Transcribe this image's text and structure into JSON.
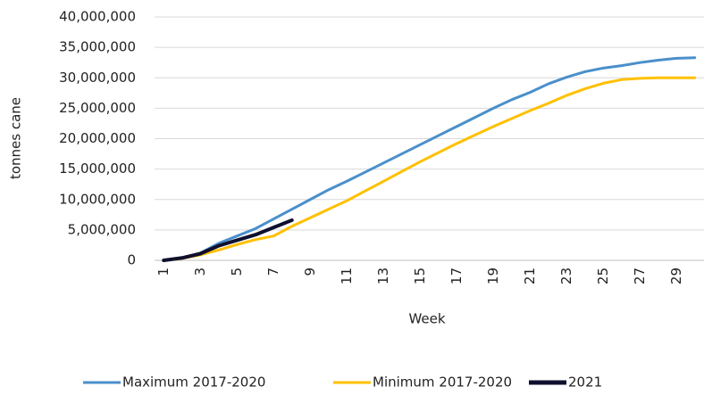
{
  "chart_data": {
    "type": "line",
    "x_label": "Week",
    "y_label": "tonnes cane",
    "categories": [
      "1",
      null,
      "3",
      null,
      "5",
      null,
      "7",
      null,
      "9",
      null,
      "11",
      null,
      "13",
      null,
      "15",
      null,
      "17",
      null,
      "19",
      null,
      "21",
      null,
      "23",
      null,
      "25",
      null,
      "27",
      null,
      "29",
      null
    ],
    "series": [
      {
        "name": "Maximum 2017-2020",
        "color": "#4a8fcb",
        "values": [
          0,
          400000,
          1200000,
          2800000,
          4000000,
          5200000,
          6800000,
          8400000,
          10000000,
          11600000,
          13000000,
          14500000,
          16000000,
          17500000,
          19000000,
          20500000,
          22000000,
          23500000,
          25000000,
          26400000,
          27600000,
          29000000,
          30100000,
          31000000,
          31600000,
          32000000,
          32500000,
          32900000,
          33200000,
          33300000
        ]
      },
      {
        "name": "Minimum 2017-2020",
        "color": "#ffc000",
        "values": [
          0,
          300000,
          900000,
          1700000,
          2600000,
          3400000,
          4000000,
          5600000,
          7000000,
          8400000,
          9800000,
          11400000,
          13000000,
          14600000,
          16200000,
          17700000,
          19200000,
          20600000,
          22000000,
          23300000,
          24600000,
          25800000,
          27100000,
          28200000,
          29100000,
          29700000,
          29900000,
          30000000,
          30000000,
          30000000
        ]
      },
      {
        "name": "2021",
        "color": "#10102e",
        "values": [
          0,
          400000,
          1100000,
          2400000,
          3300000,
          4200000,
          5400000,
          6600000,
          null,
          null,
          null,
          null,
          null,
          null,
          null,
          null,
          null,
          null,
          null,
          null,
          null,
          null,
          null,
          null,
          null,
          null,
          null,
          null,
          null,
          null
        ]
      }
    ],
    "ylim": [
      0,
      40000000
    ],
    "yticks": [
      0,
      {
        "value": 5000000,
        "label": "5,000,000"
      },
      {
        "value": 10000000,
        "label": "10,000,000"
      },
      {
        "value": 15000000,
        "label": "15,000,000"
      },
      {
        "value": 20000000,
        "label": "20,000,000"
      },
      {
        "value": 25000000,
        "label": "25,000,000"
      },
      {
        "value": 30000000,
        "label": "30,000,000"
      },
      {
        "value": 35000000,
        "label": "35,000,000"
      },
      {
        "value": 40000000,
        "label": "40,000,000"
      }
    ],
    "grid": true,
    "legend": "bottom"
  }
}
